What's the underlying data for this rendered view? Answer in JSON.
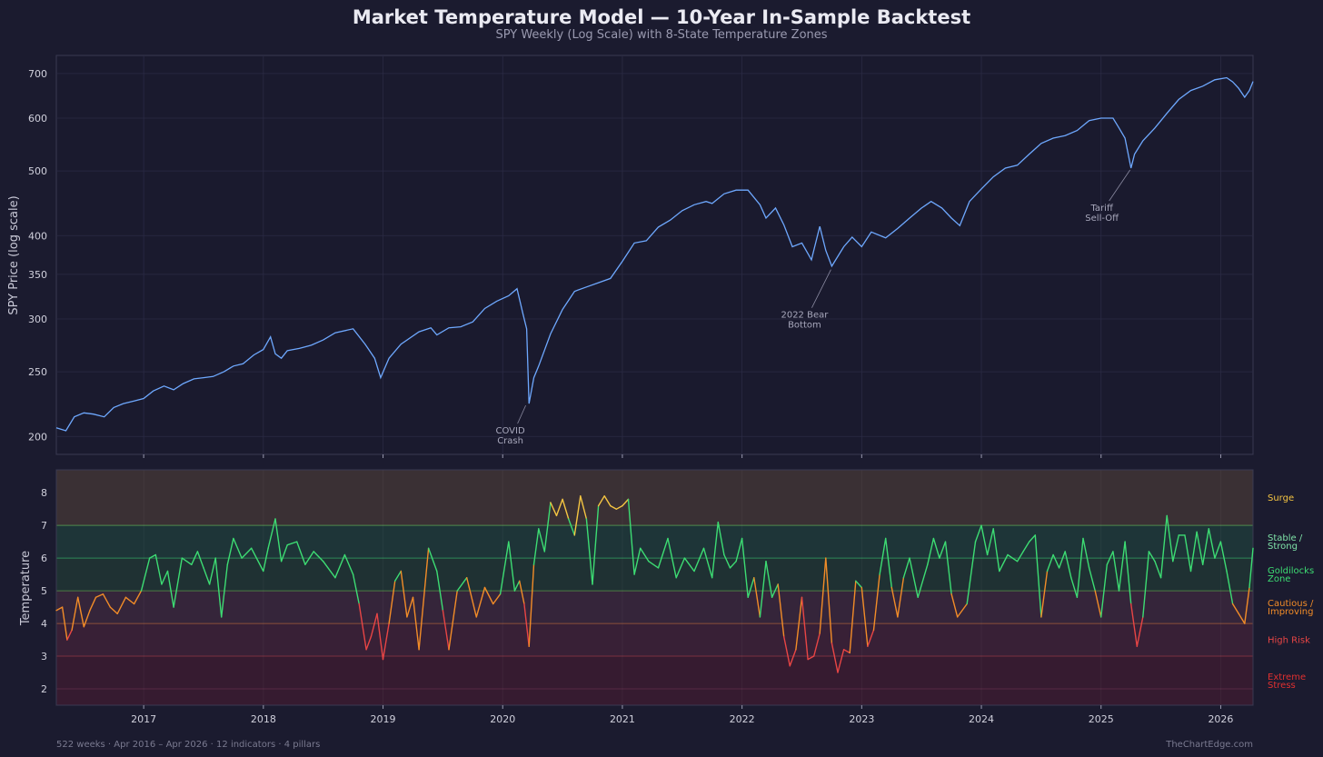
{
  "title": "Market Temperature Model — 10-Year In-Sample Backtest",
  "subtitle": "SPY Weekly (Log Scale) with 8-State Temperature Zones",
  "footer_left": "522 weeks · Apr 2016 – Apr 2026 · 12 indicators · 4 pillars",
  "footer_right": "TheChartEdge.com",
  "colors": {
    "background": "#1b1b2f",
    "panel": "#1a1a2e",
    "price_line": "#6ea8fe",
    "surge": "#f5c542",
    "green": "#3ddc73",
    "orange": "#f28c28",
    "red": "#e84545"
  },
  "chart_data": [
    {
      "type": "line",
      "ylabel": "SPY Price (log scale)",
      "yscale": "log",
      "ylim": [
        188,
        745
      ],
      "xlim": [
        2016.27,
        2026.27
      ],
      "yticks": [
        200,
        250,
        300,
        350,
        400,
        500,
        600,
        700
      ],
      "xticks": [
        2017,
        2018,
        2019,
        2020,
        2021,
        2022,
        2023,
        2024,
        2025,
        2026
      ],
      "grid": true,
      "series": [
        {
          "x": [
            2016.27,
            2016.35,
            2016.42,
            2016.5,
            2016.58,
            2016.67,
            2016.75,
            2016.83,
            2016.92,
            2017.0,
            2017.08,
            2017.17,
            2017.25,
            2017.33,
            2017.42,
            2017.5,
            2017.58,
            2017.67,
            2017.75,
            2017.83,
            2017.92,
            2018.0,
            2018.06,
            2018.1,
            2018.15,
            2018.2,
            2018.3,
            2018.4,
            2018.5,
            2018.6,
            2018.75,
            2018.85,
            2018.93,
            2018.98,
            2019.05,
            2019.15,
            2019.3,
            2019.4,
            2019.45,
            2019.55,
            2019.65,
            2019.75,
            2019.85,
            2019.95,
            2020.05,
            2020.12,
            2020.17,
            2020.2,
            2020.22,
            2020.26,
            2020.3,
            2020.4,
            2020.5,
            2020.6,
            2020.7,
            2020.8,
            2020.9,
            2021.0,
            2021.1,
            2021.2,
            2021.3,
            2021.4,
            2021.5,
            2021.6,
            2021.7,
            2021.75,
            2021.85,
            2021.95,
            2022.05,
            2022.15,
            2022.2,
            2022.28,
            2022.35,
            2022.42,
            2022.5,
            2022.58,
            2022.65,
            2022.7,
            2022.75,
            2022.85,
            2022.92,
            2023.0,
            2023.08,
            2023.2,
            2023.3,
            2023.4,
            2023.5,
            2023.58,
            2023.67,
            2023.75,
            2023.82,
            2023.9,
            2024.0,
            2024.1,
            2024.2,
            2024.3,
            2024.4,
            2024.5,
            2024.6,
            2024.7,
            2024.8,
            2024.9,
            2025.0,
            2025.1,
            2025.15,
            2025.2,
            2025.25,
            2025.28,
            2025.35,
            2025.45,
            2025.55,
            2025.65,
            2025.75,
            2025.85,
            2025.95,
            2026.05,
            2026.1,
            2026.15,
            2026.2,
            2026.24,
            2026.27
          ],
          "y": [
            206,
            204,
            214,
            217,
            216,
            214,
            221,
            224,
            226,
            228,
            234,
            238,
            235,
            240,
            244,
            245,
            246,
            250,
            255,
            257,
            265,
            270,
            282,
            266,
            262,
            269,
            271,
            274,
            279,
            286,
            290,
            275,
            262,
            245,
            262,
            275,
            287,
            291,
            284,
            291,
            292,
            297,
            311,
            319,
            325,
            333,
            305,
            290,
            224,
            245,
            255,
            285,
            310,
            330,
            335,
            340,
            345,
            366,
            390,
            393,
            412,
            422,
            436,
            445,
            450,
            447,
            462,
            468,
            468,
            445,
            425,
            440,
            415,
            385,
            390,
            368,
            413,
            380,
            360,
            385,
            398,
            385,
            405,
            397,
            410,
            425,
            440,
            450,
            440,
            425,
            414,
            450,
            470,
            490,
            505,
            510,
            530,
            550,
            560,
            565,
            575,
            595,
            600,
            600,
            580,
            560,
            505,
            530,
            555,
            580,
            610,
            640,
            660,
            670,
            685,
            690,
            680,
            665,
            645,
            660,
            681
          ]
        }
      ],
      "annotations": [
        {
          "lines": [
            "COVID",
            "Crash"
          ],
          "x": 2020.2,
          "y": 224
        },
        {
          "lines": [
            "2022 Bear",
            "Bottom"
          ],
          "x": 2022.75,
          "y": 358
        },
        {
          "lines": [
            "Tariff",
            "Sell-Off"
          ],
          "x": 2025.25,
          "y": 505
        }
      ]
    },
    {
      "type": "line",
      "ylabel": "Temperature",
      "ylim": [
        1.5,
        8.7
      ],
      "xlim": [
        2016.27,
        2026.27
      ],
      "yticks": [
        2,
        3,
        4,
        5,
        6,
        7,
        8
      ],
      "xticks": [
        2017,
        2018,
        2019,
        2020,
        2021,
        2022,
        2023,
        2024,
        2025,
        2026
      ],
      "grid": true,
      "zones": [
        {
          "label": "Surge",
          "from": 7,
          "to": 8.7,
          "color": "#f5c542"
        },
        {
          "label": "Stable / Strong",
          "from": 6,
          "to": 7,
          "color": "#7fe3a8"
        },
        {
          "label": "Goldilocks Zone",
          "from": 5,
          "to": 6,
          "color": "#3ddc73"
        },
        {
          "label": "Cautious / Improving",
          "from": 4,
          "to": 5,
          "color": "#f28c28"
        },
        {
          "label": "High Risk",
          "from": 3,
          "to": 4,
          "color": "#e84545"
        },
        {
          "label": "Extreme Stress",
          "from": 1.5,
          "to": 3,
          "color": "#e03030"
        }
      ],
      "series": [
        {
          "x": [
            2016.27,
            2016.32,
            2016.36,
            2016.4,
            2016.45,
            2016.5,
            2016.55,
            2016.6,
            2016.66,
            2016.72,
            2016.78,
            2016.85,
            2016.92,
            2016.98,
            2017.05,
            2017.1,
            2017.15,
            2017.2,
            2017.25,
            2017.32,
            2017.4,
            2017.45,
            2017.5,
            2017.55,
            2017.6,
            2017.65,
            2017.7,
            2017.75,
            2017.82,
            2017.9,
            2018.0,
            2018.04,
            2018.1,
            2018.15,
            2018.2,
            2018.28,
            2018.35,
            2018.42,
            2018.5,
            2018.6,
            2018.68,
            2018.75,
            2018.8,
            2018.86,
            2018.9,
            2018.95,
            2019.0,
            2019.05,
            2019.1,
            2019.15,
            2019.2,
            2019.25,
            2019.3,
            2019.38,
            2019.45,
            2019.5,
            2019.55,
            2019.62,
            2019.7,
            2019.78,
            2019.85,
            2019.92,
            2019.98,
            2020.05,
            2020.1,
            2020.14,
            2020.18,
            2020.22,
            2020.26,
            2020.3,
            2020.35,
            2020.4,
            2020.45,
            2020.5,
            2020.55,
            2020.6,
            2020.65,
            2020.7,
            2020.75,
            2020.8,
            2020.85,
            2020.9,
            2020.95,
            2021.0,
            2021.05,
            2021.1,
            2021.15,
            2021.22,
            2021.3,
            2021.38,
            2021.45,
            2021.52,
            2021.6,
            2021.68,
            2021.75,
            2021.8,
            2021.85,
            2021.9,
            2021.95,
            2022.0,
            2022.05,
            2022.1,
            2022.15,
            2022.2,
            2022.25,
            2022.3,
            2022.35,
            2022.4,
            2022.45,
            2022.5,
            2022.55,
            2022.6,
            2022.65,
            2022.7,
            2022.75,
            2022.8,
            2022.85,
            2022.9,
            2022.95,
            2023.0,
            2023.05,
            2023.1,
            2023.15,
            2023.2,
            2023.25,
            2023.3,
            2023.35,
            2023.4,
            2023.47,
            2023.55,
            2023.6,
            2023.65,
            2023.7,
            2023.75,
            2023.8,
            2023.88,
            2023.95,
            2024.0,
            2024.05,
            2024.1,
            2024.15,
            2024.22,
            2024.3,
            2024.35,
            2024.4,
            2024.45,
            2024.5,
            2024.55,
            2024.6,
            2024.65,
            2024.7,
            2024.75,
            2024.8,
            2024.85,
            2024.9,
            2024.95,
            2025.0,
            2025.05,
            2025.1,
            2025.15,
            2025.2,
            2025.25,
            2025.3,
            2025.35,
            2025.4,
            2025.45,
            2025.5,
            2025.55,
            2025.6,
            2025.65,
            2025.7,
            2025.75,
            2025.8,
            2025.85,
            2025.9,
            2025.95,
            2026.0,
            2026.05,
            2026.1,
            2026.15,
            2026.2,
            2026.24,
            2026.27
          ],
          "y": [
            4.4,
            4.5,
            3.5,
            3.8,
            4.8,
            3.9,
            4.4,
            4.8,
            4.9,
            4.5,
            4.3,
            4.8,
            4.6,
            5.0,
            6.0,
            6.1,
            5.2,
            5.6,
            4.5,
            6.0,
            5.8,
            6.2,
            5.7,
            5.2,
            6.0,
            4.2,
            5.8,
            6.6,
            6.0,
            6.3,
            5.6,
            6.3,
            7.2,
            5.9,
            6.4,
            6.5,
            5.8,
            6.2,
            5.9,
            5.4,
            6.1,
            5.5,
            4.6,
            3.2,
            3.6,
            4.3,
            2.9,
            4.0,
            5.3,
            5.6,
            4.2,
            4.8,
            3.2,
            6.3,
            5.6,
            4.4,
            3.2,
            5.0,
            5.4,
            4.2,
            5.1,
            4.6,
            4.9,
            6.5,
            5.0,
            5.3,
            4.6,
            3.3,
            5.8,
            6.9,
            6.2,
            7.7,
            7.3,
            7.8,
            7.2,
            6.7,
            7.9,
            7.2,
            5.2,
            7.6,
            7.9,
            7.6,
            7.5,
            7.6,
            7.8,
            5.5,
            6.3,
            5.9,
            5.7,
            6.6,
            5.4,
            6.0,
            5.6,
            6.3,
            5.4,
            7.1,
            6.1,
            5.7,
            5.9,
            6.6,
            4.8,
            5.4,
            4.2,
            5.9,
            4.8,
            5.2,
            3.6,
            2.7,
            3.2,
            4.8,
            2.9,
            3.0,
            3.7,
            6.0,
            3.4,
            2.5,
            3.2,
            3.1,
            5.3,
            5.1,
            3.3,
            3.8,
            5.5,
            6.6,
            5.1,
            4.2,
            5.4,
            6.0,
            4.8,
            5.8,
            6.6,
            6.0,
            6.5,
            4.9,
            4.2,
            4.6,
            6.5,
            7.0,
            6.1,
            6.9,
            5.6,
            6.1,
            5.9,
            6.2,
            6.5,
            6.7,
            4.2,
            5.6,
            6.1,
            5.7,
            6.2,
            5.4,
            4.8,
            6.6,
            5.7,
            5.0,
            4.2,
            5.8,
            6.2,
            5.0,
            6.5,
            4.6,
            3.3,
            4.2,
            6.2,
            5.9,
            5.4,
            7.3,
            5.9,
            6.7,
            6.7,
            5.6,
            6.8,
            5.8,
            6.9,
            6.0,
            6.5,
            5.6,
            4.6,
            4.3,
            4.0,
            5.1,
            6.3
          ]
        }
      ]
    }
  ]
}
